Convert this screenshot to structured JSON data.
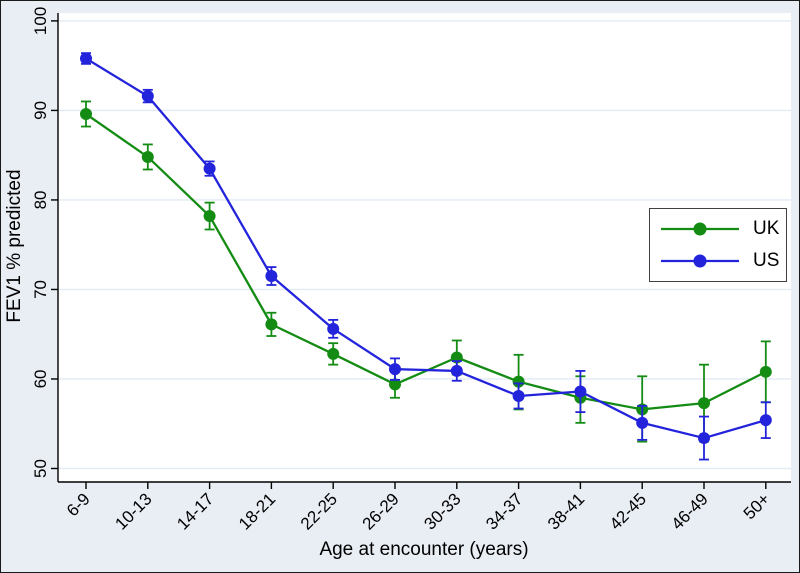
{
  "chart_data": {
    "type": "line",
    "title": "",
    "xlabel": "Age at encounter (years)",
    "ylabel": "FEV1 % predicted",
    "categories": [
      "6-9",
      "10-13",
      "14-17",
      "18-21",
      "22-25",
      "26-29",
      "30-33",
      "34-37",
      "38-41",
      "42-45",
      "46-49",
      "50+"
    ],
    "ylim": [
      50,
      100
    ],
    "yticks": [
      50,
      60,
      70,
      80,
      90,
      100
    ],
    "grid": "horizontal-only",
    "legend_position": "middle-right-box",
    "series": [
      {
        "name": "UK",
        "color": "#148c14",
        "values": [
          89.6,
          84.8,
          78.2,
          66.1,
          62.8,
          59.4,
          62.4,
          59.7,
          57.9,
          56.6,
          57.3,
          60.8
        ],
        "ci_low": [
          88.2,
          83.4,
          76.7,
          64.8,
          61.6,
          57.9,
          60.5,
          56.6,
          55.1,
          53.0,
          53.0,
          57.4
        ],
        "ci_high": [
          91.0,
          86.2,
          79.7,
          67.4,
          64.0,
          60.9,
          64.3,
          62.7,
          60.3,
          60.3,
          61.6,
          64.2
        ]
      },
      {
        "name": "US",
        "color": "#2323dc",
        "values": [
          95.8,
          91.6,
          83.5,
          71.5,
          65.6,
          61.1,
          60.9,
          58.1,
          58.6,
          55.1,
          53.4,
          55.4
        ],
        "ci_low": [
          95.2,
          90.9,
          82.7,
          70.5,
          64.6,
          59.9,
          59.8,
          56.7,
          56.3,
          53.2,
          51.0,
          53.4
        ],
        "ci_high": [
          96.4,
          92.3,
          84.3,
          72.5,
          66.6,
          62.3,
          62.0,
          59.5,
          60.9,
          57.0,
          55.8,
          57.4
        ]
      }
    ],
    "colors": {
      "plot_background": "#ffffff",
      "figure_background": "#e9edf4",
      "gridline": "#e2ebf5",
      "axis": "#000000"
    }
  }
}
